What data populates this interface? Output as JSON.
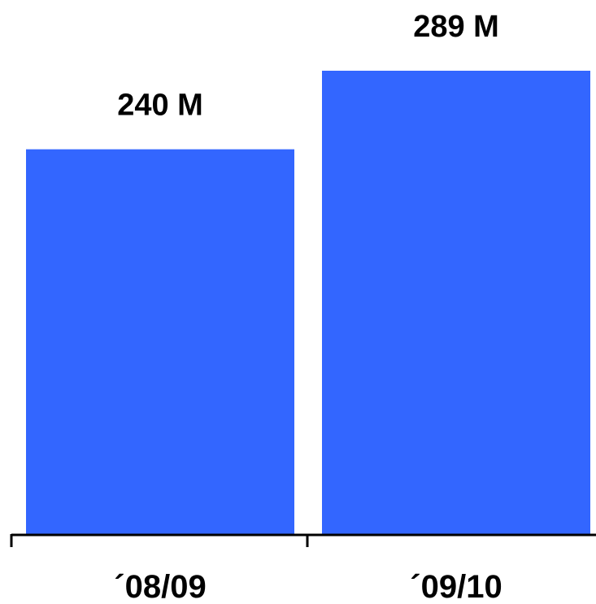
{
  "chart_data": {
    "type": "bar",
    "categories": [
      "´08/09",
      "´09/10"
    ],
    "values": [
      240,
      289
    ],
    "value_labels": [
      "240 M",
      "289 M"
    ],
    "title": "",
    "xlabel": "",
    "ylabel": "",
    "ylim": [
      0,
      289
    ],
    "grid": false,
    "legend": "none",
    "colors": {
      "bar": "#3366ff",
      "axis": "#000000"
    }
  }
}
